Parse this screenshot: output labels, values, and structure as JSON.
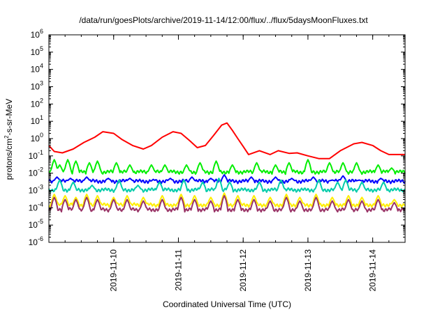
{
  "chart_data": {
    "type": "line",
    "title": "/data/run/goesPlots/archive/2019-11-14/12:00/flux/../flux/5daysMoonFluxes.txt",
    "xlabel": "Coordinated Universal Time (UTC)",
    "ylabel": {
      "pre": "protons/cm",
      "sup": "2",
      "post": "-s-sr-MeV"
    },
    "xscale": "time",
    "yscale": "log",
    "xlim": [
      "2019-11-09 00:00",
      "2019-11-14 12:00"
    ],
    "ylim": [
      1e-06,
      1000000.0
    ],
    "x_ticks": [
      "2019-11-10",
      "2019-11-11",
      "2019-11-12",
      "2019-11-13",
      "2019-11-14"
    ],
    "y_ticks": [
      {
        "base": "10",
        "exp": "-6",
        "v": -6
      },
      {
        "base": "10",
        "exp": "-5",
        "v": -5
      },
      {
        "base": "10",
        "exp": "-4",
        "v": -4
      },
      {
        "base": "10",
        "exp": "-3",
        "v": -3
      },
      {
        "base": "10",
        "exp": "-2",
        "v": -2
      },
      {
        "base": "10",
        "exp": "-1",
        "v": -1
      },
      {
        "base": "10",
        "exp": "0",
        "v": 0
      },
      {
        "base": "10",
        "exp": "1",
        "v": 1
      },
      {
        "base": "10",
        "exp": "2",
        "v": 2
      },
      {
        "base": "10",
        "exp": "3",
        "v": 3
      },
      {
        "base": "10",
        "exp": "4",
        "v": 4
      },
      {
        "base": "10",
        "exp": "5",
        "v": 5
      },
      {
        "base": "10",
        "exp": "6",
        "v": 6
      }
    ],
    "grid": false,
    "series": [
      {
        "color": "#ff0000",
        "points": [
          [
            "2019-11-09 00:00",
            0.4
          ],
          [
            "2019-11-09 02:00",
            0.18
          ],
          [
            "2019-11-09 05:00",
            0.15
          ],
          [
            "2019-11-09 09:00",
            0.25
          ],
          [
            "2019-11-09 13:00",
            0.6
          ],
          [
            "2019-11-09 17:00",
            1.2
          ],
          [
            "2019-11-09 20:00",
            2.5
          ],
          [
            "2019-11-10 00:00",
            2.0
          ],
          [
            "2019-11-10 03:00",
            0.9
          ],
          [
            "2019-11-10 07:00",
            0.4
          ],
          [
            "2019-11-10 11:00",
            0.25
          ],
          [
            "2019-11-10 14:00",
            0.4
          ],
          [
            "2019-11-10 18:00",
            1.2
          ],
          [
            "2019-11-10 22:00",
            2.5
          ],
          [
            "2019-11-11 01:00",
            2.0
          ],
          [
            "2019-11-11 04:00",
            0.8
          ],
          [
            "2019-11-11 07:00",
            0.3
          ],
          [
            "2019-11-11 10:00",
            0.4
          ],
          [
            "2019-11-11 13:00",
            1.5
          ],
          [
            "2019-11-11 16:00",
            6.0
          ],
          [
            "2019-11-11 18:00",
            8.0
          ],
          [
            "2019-11-11 20:00",
            3.0
          ],
          [
            "2019-11-11 22:00",
            1.0
          ],
          [
            "2019-11-12 00:00",
            0.35
          ],
          [
            "2019-11-12 02:00",
            0.12
          ],
          [
            "2019-11-12 06:00",
            0.2
          ],
          [
            "2019-11-12 10:00",
            0.12
          ],
          [
            "2019-11-12 13:00",
            0.2
          ],
          [
            "2019-11-12 17:00",
            0.14
          ],
          [
            "2019-11-12 20:00",
            0.15
          ],
          [
            "2019-11-13 00:00",
            0.1
          ],
          [
            "2019-11-13 04:00",
            0.07
          ],
          [
            "2019-11-13 08:00",
            0.07
          ],
          [
            "2019-11-13 12:00",
            0.2
          ],
          [
            "2019-11-13 17:00",
            0.5
          ],
          [
            "2019-11-13 20:00",
            0.6
          ],
          [
            "2019-11-14 00:00",
            0.4
          ],
          [
            "2019-11-14 03:00",
            0.2
          ],
          [
            "2019-11-14 06:00",
            0.12
          ],
          [
            "2019-11-14 09:00",
            0.12
          ],
          [
            "2019-11-14 12:00",
            0.12
          ]
        ]
      },
      {
        "color": "#00ee00",
        "base": 0.012,
        "spikes": [
          [
            "2019-11-09 02:00",
            0.06
          ],
          [
            "2019-11-09 04:00",
            0.03
          ],
          [
            "2019-11-09 07:00",
            0.06
          ],
          [
            "2019-11-09 10:00",
            0.05
          ],
          [
            "2019-11-09 15:00",
            0.04
          ],
          [
            "2019-11-09 18:00",
            0.05
          ],
          [
            "2019-11-10 01:00",
            0.04
          ],
          [
            "2019-11-10 06:00",
            0.03
          ],
          [
            "2019-11-10 14:00",
            0.03
          ],
          [
            "2019-11-10 19:00",
            0.03
          ],
          [
            "2019-11-11 03:00",
            0.03
          ],
          [
            "2019-11-11 08:00",
            0.04
          ],
          [
            "2019-11-11 14:00",
            0.05
          ],
          [
            "2019-11-11 20:00",
            0.03
          ],
          [
            "2019-11-12 05:00",
            0.04
          ],
          [
            "2019-11-12 12:00",
            0.03
          ],
          [
            "2019-11-12 17:00",
            0.04
          ],
          [
            "2019-11-13 00:00",
            0.06
          ],
          [
            "2019-11-13 08:00",
            0.04
          ],
          [
            "2019-11-13 13:00",
            0.04
          ],
          [
            "2019-11-13 18:00",
            0.04
          ],
          [
            "2019-11-14 02:00",
            0.03
          ],
          [
            "2019-11-14 07:00",
            0.02
          ]
        ]
      },
      {
        "color": "#0000ff",
        "base": 0.0035,
        "spikes": [
          [
            "2019-11-09 03:00",
            0.006
          ],
          [
            "2019-11-09 08:00",
            0.005
          ],
          [
            "2019-11-09 14:00",
            0.006
          ],
          [
            "2019-11-09 22:00",
            0.005
          ],
          [
            "2019-11-10 06:00",
            0.005
          ],
          [
            "2019-11-10 15:00",
            0.004
          ],
          [
            "2019-11-10 21:00",
            0.005
          ],
          [
            "2019-11-11 05:00",
            0.006
          ],
          [
            "2019-11-11 12:00",
            0.005
          ],
          [
            "2019-11-11 17:00",
            0.008
          ],
          [
            "2019-11-12 03:00",
            0.006
          ],
          [
            "2019-11-12 12:00",
            0.006
          ],
          [
            "2019-11-12 18:00",
            0.005
          ],
          [
            "2019-11-13 02:00",
            0.006
          ],
          [
            "2019-11-13 09:00",
            0.004
          ],
          [
            "2019-11-13 13:00",
            0.007
          ],
          [
            "2019-11-13 19:00",
            0.004
          ],
          [
            "2019-11-14 03:00",
            0.005
          ]
        ]
      },
      {
        "color": "#00ccaa",
        "base": 0.0011,
        "spikes": [
          [
            "2019-11-09 04:00",
            0.004
          ],
          [
            "2019-11-09 09:00",
            0.003
          ],
          [
            "2019-11-09 16:00",
            0.002
          ],
          [
            "2019-11-10 02:00",
            0.004
          ],
          [
            "2019-11-10 09:00",
            0.002
          ],
          [
            "2019-11-10 17:00",
            0.003
          ],
          [
            "2019-11-11 02:00",
            0.004
          ],
          [
            "2019-11-11 09:00",
            0.003
          ],
          [
            "2019-11-11 15:00",
            0.005
          ],
          [
            "2019-11-11 19:00",
            0.003
          ],
          [
            "2019-11-12 06:00",
            0.003
          ],
          [
            "2019-11-12 14:00",
            0.004
          ],
          [
            "2019-11-13 04:00",
            0.004
          ],
          [
            "2019-11-13 11:00",
            0.003
          ],
          [
            "2019-11-13 14:00",
            0.004
          ],
          [
            "2019-11-13 20:00",
            0.003
          ],
          [
            "2019-11-14 04:00",
            0.003
          ]
        ]
      },
      {
        "color": "#ffee00",
        "base": 0.00015,
        "spikes": [
          [
            "2019-11-09 02:00",
            0.0006
          ],
          [
            "2019-11-09 06:00",
            0.0005
          ],
          [
            "2019-11-09 10:00",
            0.0004
          ],
          [
            "2019-11-09 14:00",
            0.0006
          ],
          [
            "2019-11-09 18:00",
            0.0005
          ],
          [
            "2019-11-10 00:00",
            0.0004
          ],
          [
            "2019-11-10 05:00",
            0.0005
          ],
          [
            "2019-11-10 11:00",
            0.0004
          ],
          [
            "2019-11-10 18:00",
            0.0005
          ],
          [
            "2019-11-11 01:00",
            0.0006
          ],
          [
            "2019-11-11 06:00",
            0.0005
          ],
          [
            "2019-11-11 12:00",
            0.0004
          ],
          [
            "2019-11-11 17:00",
            0.0007
          ],
          [
            "2019-11-11 22:00",
            0.0005
          ],
          [
            "2019-11-12 04:00",
            0.0005
          ],
          [
            "2019-11-12 10:00",
            0.0004
          ],
          [
            "2019-11-12 16:00",
            0.0006
          ],
          [
            "2019-11-12 21:00",
            0.0004
          ],
          [
            "2019-11-13 03:00",
            0.0006
          ],
          [
            "2019-11-13 09:00",
            0.0004
          ],
          [
            "2019-11-13 15:00",
            0.0005
          ],
          [
            "2019-11-13 20:00",
            0.0004
          ],
          [
            "2019-11-14 02:00",
            0.0005
          ],
          [
            "2019-11-14 08:00",
            0.0003
          ]
        ]
      },
      {
        "color": "#993366",
        "base": 8e-05,
        "spikes": [
          [
            "2019-11-09 02:00",
            0.0004
          ],
          [
            "2019-11-09 06:00",
            0.0003
          ],
          [
            "2019-11-09 10:00",
            0.0003
          ],
          [
            "2019-11-09 14:00",
            0.0004
          ],
          [
            "2019-11-09 18:00",
            0.0003
          ],
          [
            "2019-11-10 00:00",
            0.0003
          ],
          [
            "2019-11-10 05:00",
            0.0003
          ],
          [
            "2019-11-10 11:00",
            0.00025
          ],
          [
            "2019-11-10 18:00",
            0.0003
          ],
          [
            "2019-11-11 01:00",
            0.0004
          ],
          [
            "2019-11-11 06:00",
            0.0003
          ],
          [
            "2019-11-11 12:00",
            0.00025
          ],
          [
            "2019-11-11 17:00",
            0.0005
          ],
          [
            "2019-11-11 22:00",
            0.0003
          ],
          [
            "2019-11-12 04:00",
            0.0003
          ],
          [
            "2019-11-12 10:00",
            0.00025
          ],
          [
            "2019-11-12 16:00",
            0.0004
          ],
          [
            "2019-11-12 21:00",
            0.00025
          ],
          [
            "2019-11-13 03:00",
            0.0004
          ],
          [
            "2019-11-13 09:00",
            0.00025
          ],
          [
            "2019-11-13 15:00",
            0.0003
          ],
          [
            "2019-11-13 20:00",
            0.00025
          ],
          [
            "2019-11-14 02:00",
            0.0003
          ],
          [
            "2019-11-14 08:00",
            0.0002
          ]
        ]
      }
    ]
  }
}
